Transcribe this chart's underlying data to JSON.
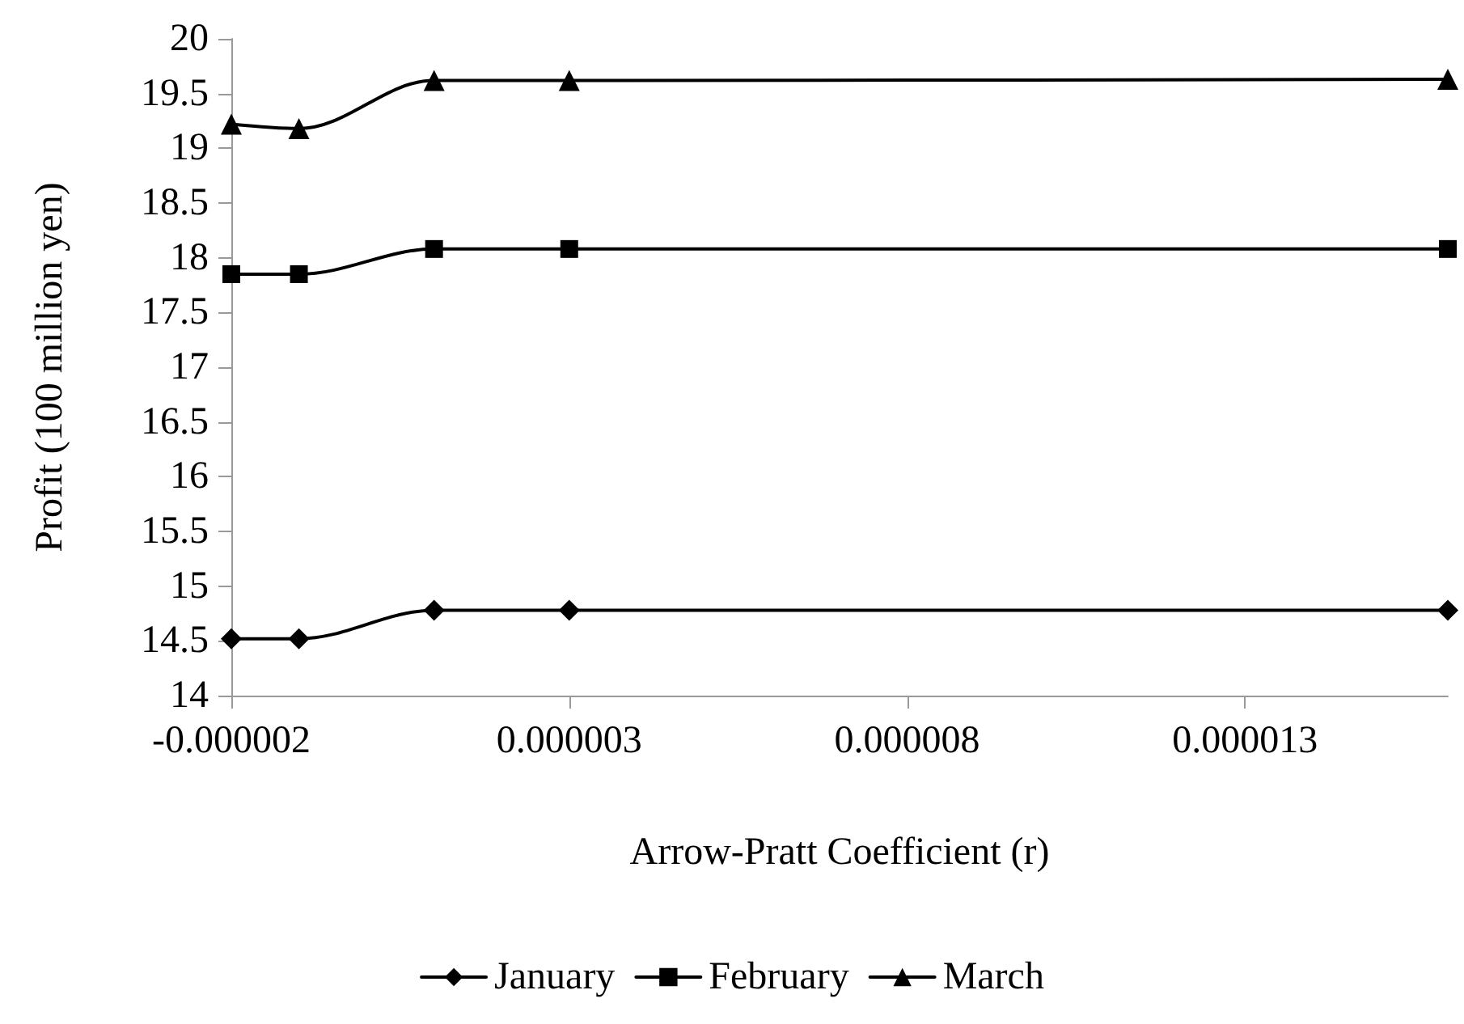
{
  "chart_data": {
    "type": "line",
    "xlabel": "Arrow-Pratt Coefficient (r)",
    "ylabel": "Profit (100 million yen)",
    "x": [
      -2e-06,
      -1e-06,
      1e-06,
      3e-06,
      1.6e-05
    ],
    "xlim": [
      -2e-06,
      1.6e-05
    ],
    "xticks": [
      {
        "value": -2e-06,
        "label": "-0.000002"
      },
      {
        "value": 3e-06,
        "label": "0.000003"
      },
      {
        "value": 8e-06,
        "label": "0.000008"
      },
      {
        "value": 1.3e-05,
        "label": "0.000013"
      }
    ],
    "ylim": [
      14,
      20
    ],
    "yticks": [
      14,
      14.5,
      15,
      15.5,
      16,
      16.5,
      17,
      17.5,
      18,
      18.5,
      19,
      19.5,
      20
    ],
    "series": [
      {
        "name": "January",
        "color": "#000000",
        "marker": "diamond",
        "values": [
          14.52,
          14.52,
          14.78,
          14.78,
          14.78
        ]
      },
      {
        "name": "February",
        "color": "#000000",
        "marker": "square",
        "values": [
          17.85,
          17.85,
          18.08,
          18.08,
          18.08
        ]
      },
      {
        "name": "March",
        "color": "#000000",
        "marker": "triangle",
        "values": [
          19.22,
          19.18,
          19.62,
          19.62,
          19.63
        ]
      }
    ],
    "legend": "bottom",
    "grid": false,
    "line_style": "solid"
  }
}
